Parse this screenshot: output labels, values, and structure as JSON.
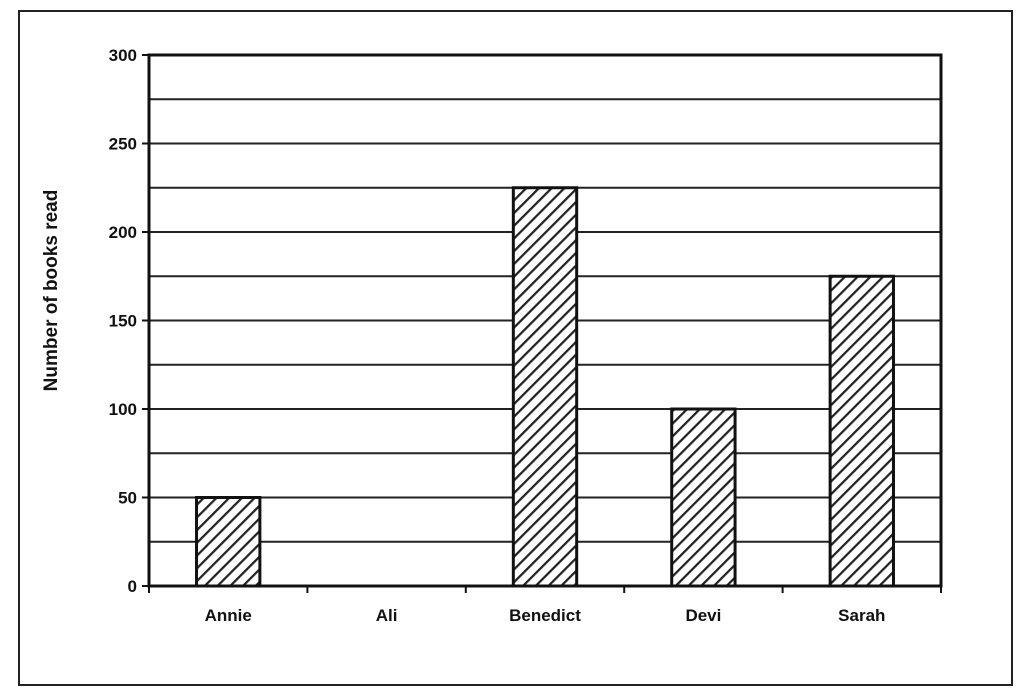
{
  "chart_data": {
    "type": "bar",
    "title": "",
    "xlabel": "",
    "ylabel": "Number of books read",
    "categories": [
      "Annie",
      "Ali",
      "Benedict",
      "Devi",
      "Sarah"
    ],
    "values": [
      50,
      0,
      225,
      100,
      175
    ],
    "ylim": [
      0,
      300
    ],
    "yticks": [
      0,
      50,
      100,
      150,
      200,
      250,
      300
    ],
    "minor_gridlines": [
      25,
      75,
      125,
      175,
      225,
      275
    ],
    "grid": true,
    "legend": "none",
    "bar_fill": "diagonal-hatch",
    "colors": {
      "bar_stroke": "#111111",
      "hatch": "#222222",
      "grid": "#222222",
      "background": "#ffffff"
    }
  }
}
